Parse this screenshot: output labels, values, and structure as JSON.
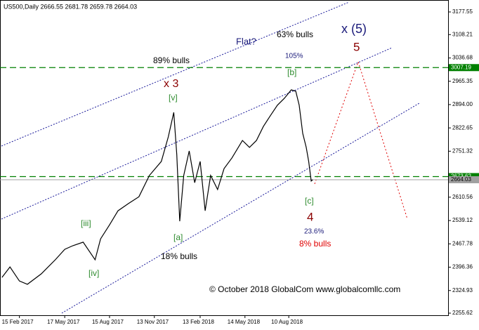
{
  "chart_data": {
    "type": "line",
    "header": "US500,Daily  2666.55 2681.78 2659.78 2664.03",
    "x": [
      "2017-01-11",
      "2017-01-27",
      "2017-02-15",
      "2017-03-03",
      "2017-03-31",
      "2017-04-28",
      "2017-05-17",
      "2017-06-02",
      "2017-06-23",
      "2017-07-17",
      "2017-07-28",
      "2017-08-15",
      "2017-09-01",
      "2017-09-22",
      "2017-10-13",
      "2017-11-03",
      "2017-11-27",
      "2017-12-11",
      "2017-12-22",
      "2017-12-28",
      "2018-01-03",
      "2018-01-11",
      "2018-01-22",
      "2018-02-02",
      "2018-02-13",
      "2018-02-23",
      "2018-03-06",
      "2018-03-20",
      "2018-04-02",
      "2018-04-18",
      "2018-05-09",
      "2018-05-23",
      "2018-06-06",
      "2018-06-20",
      "2018-07-04",
      "2018-07-18",
      "2018-08-01",
      "2018-08-15",
      "2018-08-24",
      "2018-08-31",
      "2018-09-07",
      "2018-09-14",
      "2018-09-19",
      "2018-09-24",
      "2018-09-27"
    ],
    "values": [
      2365,
      2397,
      2354,
      2344,
      2376,
      2419,
      2451,
      2462,
      2473,
      2419,
      2483,
      2526,
      2569,
      2591,
      2612,
      2677,
      2720,
      2795,
      2870,
      2741,
      2537,
      2677,
      2752,
      2655,
      2720,
      2569,
      2677,
      2634,
      2698,
      2731,
      2784,
      2763,
      2784,
      2827,
      2860,
      2892,
      2913,
      2939,
      2935,
      2892,
      2806,
      2763,
      2720,
      2660,
      2664.03
    ],
    "color": "#000000",
    "xlim": [
      "2017-01-07",
      "2019-06-26"
    ],
    "xticks": [
      {
        "value": "2017-02-15",
        "label": "15 Feb 2017"
      },
      {
        "value": "2017-05-17",
        "label": "17 May 2017"
      },
      {
        "value": "2017-08-15",
        "label": "15 Aug 2017"
      },
      {
        "value": "2017-11-13",
        "label": "13 Nov 2017"
      },
      {
        "value": "2018-02-13",
        "label": "13 Feb 2018"
      },
      {
        "value": "2018-05-14",
        "label": "14 May 2018"
      },
      {
        "value": "2018-08-10",
        "label": "10 Aug 2018"
      }
    ],
    "ylim": [
      2249.2,
      3214.1
    ],
    "yticks": [
      3177.55,
      3108.21,
      3036.68,
      2965.35,
      {
        "value": 2894,
        "label": "2894.00"
      },
      2822.65,
      2751.32,
      2610.56,
      2539.12,
      2467.78,
      2396.36,
      2324.93,
      2255.62
    ],
    "horizontal_lines": [
      {
        "value": 3007.19,
        "color": "#008000"
      },
      {
        "value": 2673.62,
        "color": "#008000"
      },
      {
        "value": 2664.03,
        "color": "#a0a0a0"
      }
    ],
    "annotations": [
      "x 3",
      "[v]",
      "Flat?",
      "63% bulls",
      "89% bulls",
      "105%",
      "x (5)",
      "5",
      "[b]",
      "[iii]",
      "[iv]",
      "[a]",
      "18% bulls",
      "[c]",
      "4",
      "23.6%",
      "8% bulls",
      "© October 2018 GlobalCom www.globalcomllc.com"
    ]
  }
}
